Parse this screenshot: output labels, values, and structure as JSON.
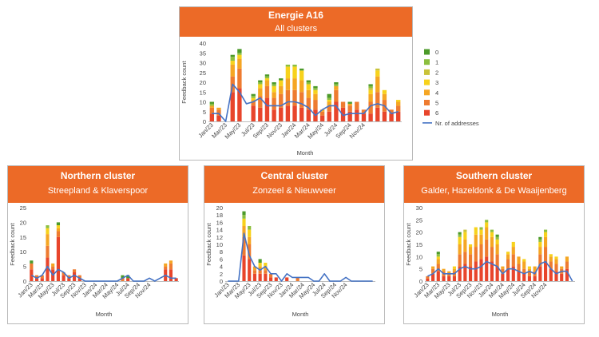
{
  "colors": {
    "header_bg": "#ec6a27",
    "s0": "#4c9a2a",
    "s1": "#8cbf3f",
    "s2": "#c9c33a",
    "s3": "#f7d21c",
    "s4": "#f5a623",
    "s5": "#ee7b30",
    "s6": "#e8452b",
    "line": "#4472c4"
  },
  "chart_data": [
    {
      "id": "main",
      "type": "bar",
      "stacked": true,
      "title": "Energie A16",
      "subtitle": "All clusters",
      "xlabel": "Month",
      "ylabel": "Feedback count",
      "ylim": [
        0,
        40
      ],
      "yticks": [
        0,
        5,
        10,
        15,
        20,
        25,
        30,
        35,
        40
      ],
      "xtick_labels": [
        "Jan/23",
        "Mar/23",
        "May/23",
        "Jul/23",
        "Sep/23",
        "Nov/23",
        "Jan/24",
        "Mar/24",
        "May/24",
        "Jul/24",
        "Sep/24",
        "Nov/24"
      ],
      "legend": [
        "0",
        "1",
        "2",
        "3",
        "4",
        "5",
        "6",
        "Nr. of addresses"
      ],
      "series": [
        {
          "name": "6",
          "values": [
            4,
            3,
            0,
            15,
            17,
            0,
            8,
            7,
            12,
            6,
            7,
            8,
            8,
            7,
            6,
            6,
            3,
            5,
            10,
            7,
            5,
            6,
            4,
            4,
            7,
            5,
            4,
            5
          ]
        },
        {
          "name": "5",
          "values": [
            3,
            3,
            0,
            8,
            10,
            0,
            2,
            6,
            6,
            6,
            7,
            8,
            8,
            8,
            6,
            5,
            2,
            3,
            6,
            3,
            3,
            4,
            2,
            6,
            8,
            6,
            2,
            3
          ]
        },
        {
          "name": "4",
          "values": [
            1,
            1,
            0,
            6,
            5,
            0,
            1,
            4,
            3,
            3,
            4,
            6,
            6,
            6,
            4,
            3,
            1,
            2,
            2,
            0,
            1,
            0,
            0,
            4,
            8,
            3,
            0,
            2
          ]
        },
        {
          "name": "3",
          "values": [
            0,
            0,
            0,
            2,
            2,
            0,
            1,
            2,
            1,
            3,
            3,
            6,
            6,
            5,
            3,
            2,
            0,
            1,
            0,
            0,
            0,
            0,
            0,
            2,
            3,
            2,
            0,
            1
          ]
        },
        {
          "name": "2",
          "values": [
            0,
            0,
            0,
            0,
            0,
            0,
            0,
            0,
            0,
            0,
            0,
            0,
            0,
            0,
            0,
            0,
            0,
            0,
            0,
            0,
            0,
            0,
            0,
            1,
            1,
            0,
            0,
            0
          ]
        },
        {
          "name": "1",
          "values": [
            1,
            0,
            0,
            2,
            1,
            0,
            1,
            1,
            1,
            1,
            0,
            1,
            1,
            0,
            1,
            1,
            0,
            1,
            1,
            0,
            0,
            0,
            0,
            1,
            0,
            0,
            0,
            0
          ]
        },
        {
          "name": "0",
          "values": [
            1,
            0,
            0,
            1,
            2,
            0,
            1,
            1,
            1,
            1,
            1,
            0,
            0,
            1,
            1,
            1,
            0,
            2,
            1,
            0,
            1,
            0,
            0,
            1,
            0,
            0,
            0,
            0
          ]
        }
      ],
      "line": {
        "name": "Nr. of addresses",
        "values": [
          4,
          4,
          0,
          19,
          15,
          9,
          10,
          12,
          8,
          8,
          8,
          10,
          10,
          9,
          7,
          3,
          6,
          8,
          8,
          3,
          4,
          4,
          4,
          8,
          9,
          8,
          4,
          5
        ]
      }
    },
    {
      "id": "north",
      "type": "bar",
      "stacked": true,
      "title": "Northern cluster",
      "subtitle": "Streepland & Klaverspoor",
      "xlabel": "Month",
      "ylabel": "Feedback count",
      "ylim": [
        0,
        25
      ],
      "yticks": [
        0,
        5,
        10,
        15,
        20,
        25
      ],
      "xtick_labels": [
        "Jan/23",
        "Mar/23",
        "May/23",
        "Jul/23",
        "Sep/23",
        "Nov/23",
        "Jan/24",
        "Mar/24",
        "May/24",
        "Jul/24",
        "Sep/24",
        "Nov/24"
      ],
      "series": [
        {
          "name": "6",
          "values": [
            4,
            1,
            1,
            8,
            4,
            15,
            2,
            1,
            3,
            1,
            0,
            0,
            0,
            0,
            0,
            0,
            0,
            0,
            1,
            0,
            0,
            0,
            0,
            0,
            0,
            4,
            4,
            1
          ]
        },
        {
          "name": "5",
          "values": [
            2,
            1,
            1,
            4,
            1,
            2,
            1,
            1,
            1,
            1,
            0,
            0,
            0,
            0,
            0,
            0,
            0,
            1,
            0,
            0,
            0,
            0,
            0,
            0,
            0,
            1,
            2,
            0
          ]
        },
        {
          "name": "4",
          "values": [
            0,
            0,
            0,
            4,
            1,
            1,
            0,
            0,
            0,
            0,
            0,
            0,
            0,
            0,
            0,
            0,
            0,
            0,
            0,
            0,
            0,
            0,
            0,
            0,
            0,
            1,
            1,
            0
          ]
        },
        {
          "name": "3",
          "values": [
            0,
            0,
            0,
            2,
            0,
            1,
            0,
            0,
            0,
            0,
            0,
            0,
            0,
            0,
            0,
            0,
            0,
            0,
            0,
            0,
            0,
            0,
            0,
            0,
            0,
            0,
            0,
            0
          ]
        },
        {
          "name": "2",
          "values": [
            0,
            0,
            0,
            0,
            0,
            0,
            0,
            0,
            0,
            0,
            0,
            0,
            0,
            0,
            0,
            0,
            0,
            0,
            0,
            0,
            0,
            0,
            0,
            0,
            0,
            0,
            0,
            0
          ]
        },
        {
          "name": "1",
          "values": [
            0,
            0,
            0,
            1,
            0,
            0,
            0,
            0,
            0,
            0,
            0,
            0,
            0,
            0,
            0,
            0,
            0,
            0,
            0,
            0,
            0,
            0,
            0,
            0,
            0,
            0,
            0,
            0
          ]
        },
        {
          "name": "0",
          "values": [
            1,
            0,
            0,
            0,
            0,
            1,
            0,
            0,
            0,
            0,
            0,
            0,
            0,
            0,
            0,
            0,
            0,
            1,
            1,
            0,
            0,
            0,
            0,
            0,
            0,
            0,
            0,
            0
          ]
        }
      ],
      "line": {
        "name": "Nr. of addresses",
        "values": [
          2,
          1,
          2,
          5,
          2,
          4,
          3,
          1,
          2,
          1,
          0,
          0,
          0,
          0,
          0,
          0,
          0,
          1,
          2,
          0,
          0,
          0,
          1,
          0,
          1,
          2,
          1,
          1
        ]
      }
    },
    {
      "id": "central",
      "type": "bar",
      "stacked": true,
      "title": "Central cluster",
      "subtitle": "Zonzeel & Nieuwveer",
      "xlabel": "Month",
      "ylabel": "Feedback count",
      "ylim": [
        0,
        20
      ],
      "yticks": [
        0,
        2,
        4,
        6,
        8,
        10,
        12,
        14,
        16,
        18,
        20
      ],
      "xtick_labels": [
        "Jan/23",
        "Mar/23",
        "May/23",
        "Jul/23",
        "Sep/23",
        "Nov/23",
        "Jan/24",
        "Mar/24",
        "May/24",
        "Jul/24",
        "Sep/24",
        "Nov/24"
      ],
      "series": [
        {
          "name": "6",
          "values": [
            0,
            0,
            0,
            7,
            6,
            2,
            2,
            2,
            1,
            1,
            0,
            1,
            0,
            0,
            0,
            0,
            0,
            0,
            0,
            0,
            0,
            0,
            0,
            0,
            0,
            0,
            0,
            0
          ]
        },
        {
          "name": "5",
          "values": [
            0,
            0,
            0,
            5,
            4,
            1,
            1,
            1,
            1,
            0,
            0,
            0,
            0,
            1,
            0,
            0,
            0,
            0,
            0,
            0,
            0,
            0,
            0,
            0,
            0,
            0,
            0,
            0
          ]
        },
        {
          "name": "4",
          "values": [
            0,
            0,
            0,
            3,
            2,
            1,
            1,
            1,
            0,
            0,
            0,
            0,
            0,
            0,
            0,
            0,
            0,
            0,
            0,
            0,
            0,
            0,
            0,
            0,
            0,
            0,
            0,
            0
          ]
        },
        {
          "name": "3",
          "values": [
            0,
            0,
            0,
            2,
            2,
            0,
            1,
            1,
            0,
            0,
            0,
            0,
            0,
            0,
            0,
            0,
            0,
            0,
            0,
            0,
            0,
            0,
            0,
            0,
            0,
            0,
            0,
            0
          ]
        },
        {
          "name": "2",
          "values": [
            0,
            0,
            0,
            0,
            0,
            0,
            0,
            0,
            0,
            0,
            0,
            0,
            0,
            0,
            0,
            0,
            0,
            0,
            0,
            0,
            0,
            0,
            0,
            0,
            0,
            0,
            0,
            0
          ]
        },
        {
          "name": "1",
          "values": [
            0,
            0,
            0,
            1,
            1,
            0,
            0,
            0,
            0,
            0,
            0,
            0,
            0,
            0,
            0,
            0,
            0,
            0,
            0,
            0,
            0,
            0,
            0,
            0,
            0,
            0,
            0,
            0
          ]
        },
        {
          "name": "0",
          "values": [
            0,
            0,
            0,
            1,
            0,
            0,
            1,
            0,
            0,
            0,
            0,
            0,
            0,
            0,
            0,
            0,
            0,
            0,
            0,
            0,
            0,
            0,
            0,
            0,
            0,
            0,
            0,
            0
          ]
        }
      ],
      "line": {
        "name": "Nr. of addresses",
        "values": [
          0,
          0,
          0,
          13,
          7,
          4,
          3,
          4,
          2,
          2,
          0,
          2,
          1,
          1,
          1,
          1,
          0,
          0,
          2,
          0,
          0,
          0,
          1,
          0,
          0,
          0,
          0,
          0
        ]
      }
    },
    {
      "id": "south",
      "type": "bar",
      "stacked": true,
      "title": "Southern cluster",
      "subtitle": "Galder, Hazeldonk & De Waaijenberg",
      "xlabel": "Month",
      "ylabel": "Feedback count",
      "ylim": [
        0,
        30
      ],
      "yticks": [
        0,
        5,
        10,
        15,
        20,
        25,
        30
      ],
      "xtick_labels": [
        "Jan/23",
        "Mar/23",
        "May/23",
        "Jul/23",
        "Sep/23",
        "Nov/23",
        "Jan/24",
        "Mar/24",
        "May/24",
        "Jul/24",
        "Sep/24",
        "Nov/24"
      ],
      "series": [
        {
          "name": "6",
          "values": [
            1,
            3,
            4,
            2,
            2,
            2,
            6,
            7,
            6,
            8,
            9,
            10,
            8,
            6,
            3,
            5,
            6,
            4,
            3,
            2,
            2,
            6,
            8,
            5,
            4,
            3,
            5,
            0
          ]
        },
        {
          "name": "5",
          "values": [
            1,
            2,
            3,
            2,
            1,
            2,
            5,
            5,
            5,
            6,
            6,
            7,
            6,
            5,
            2,
            4,
            5,
            3,
            2,
            2,
            2,
            5,
            6,
            3,
            3,
            2,
            3,
            0
          ]
        },
        {
          "name": "4",
          "values": [
            0,
            1,
            2,
            1,
            1,
            1,
            4,
            5,
            3,
            5,
            4,
            5,
            4,
            4,
            1,
            2,
            3,
            3,
            3,
            1,
            2,
            3,
            4,
            2,
            2,
            1,
            2,
            0
          ]
        },
        {
          "name": "3",
          "values": [
            0,
            0,
            1,
            0,
            0,
            1,
            3,
            3,
            1,
            3,
            2,
            2,
            2,
            2,
            0,
            1,
            2,
            0,
            1,
            1,
            0,
            2,
            2,
            1,
            1,
            0,
            0,
            0
          ]
        },
        {
          "name": "2",
          "values": [
            0,
            0,
            0,
            0,
            0,
            0,
            0,
            1,
            0,
            0,
            0,
            0,
            0,
            0,
            0,
            0,
            0,
            0,
            0,
            0,
            0,
            0,
            0,
            0,
            0,
            0,
            0,
            0
          ]
        },
        {
          "name": "1",
          "values": [
            0,
            0,
            1,
            0,
            0,
            0,
            1,
            0,
            0,
            0,
            1,
            1,
            1,
            1,
            0,
            0,
            0,
            0,
            0,
            0,
            0,
            1,
            1,
            0,
            0,
            0,
            0,
            0
          ]
        },
        {
          "name": "0",
          "values": [
            0,
            0,
            1,
            0,
            0,
            0,
            1,
            0,
            0,
            0,
            0,
            0,
            0,
            1,
            0,
            0,
            0,
            0,
            0,
            0,
            0,
            1,
            0,
            0,
            0,
            0,
            0,
            0
          ]
        }
      ],
      "line": {
        "name": "Nr. of addresses",
        "values": [
          2,
          3,
          5,
          3,
          3,
          3,
          5,
          6,
          5,
          5,
          6,
          8,
          7,
          6,
          3,
          5,
          5,
          4,
          3,
          4,
          3,
          7,
          8,
          5,
          3,
          4,
          4,
          0
        ]
      }
    }
  ]
}
